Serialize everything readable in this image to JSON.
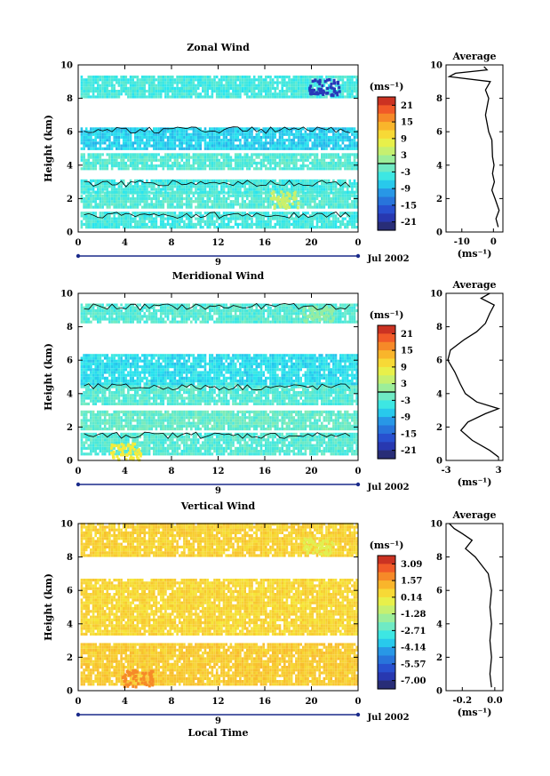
{
  "figure": {
    "x_axis_label": "Local Time",
    "date_label": "Jul 2002",
    "day_label": "9",
    "y_axis_label": "Height (km)",
    "average_title": "Average",
    "unit_label": "(ms⁻¹)",
    "colorbar_unit": "(ms⁻¹)"
  },
  "chart_data": [
    {
      "type": "heatmap",
      "title": "Zonal Wind",
      "xlabel": "",
      "ylabel": "Height (km)",
      "xlim": [
        0,
        24
      ],
      "ylim": [
        0,
        10
      ],
      "x_ticks": [
        "0",
        "4",
        "8",
        "12",
        "16",
        "20",
        "0"
      ],
      "y_ticks": [
        "0",
        "2",
        "4",
        "6",
        "8",
        "10"
      ],
      "colorbar": {
        "label": "(ms⁻¹)",
        "ticks": [
          "21",
          "15",
          "9",
          "3",
          "-3",
          "-9",
          "-15",
          "-21"
        ],
        "zero_line": true
      },
      "bands": [
        {
          "y0": 0.2,
          "y1": 1.1,
          "value": -4
        },
        {
          "y0": 1.4,
          "y1": 2.4,
          "value": -3
        },
        {
          "y0": 2.3,
          "y1": 3.0,
          "value": -4
        },
        {
          "y0": 3.7,
          "y1": 4.6,
          "value": -3
        },
        {
          "y0": 4.9,
          "y1": 6.2,
          "value": -7
        },
        {
          "y0": 8.0,
          "y1": 9.3,
          "value": -4
        }
      ],
      "features": [
        {
          "x": 21.0,
          "y": 8.7,
          "value": -19
        },
        {
          "x": 17.5,
          "y": 2.0,
          "value": 5
        }
      ],
      "profile": {
        "title": "Average",
        "xlabel": "(ms⁻¹)",
        "xlim": [
          -15,
          3
        ],
        "x_ticks": [
          "-10",
          "0"
        ],
        "ylim": [
          0,
          10
        ],
        "y_ticks": [
          "0",
          "2",
          "4",
          "6",
          "8",
          "10"
        ],
        "points": [
          [
            1.5,
            0.3
          ],
          [
            0.8,
            0.8
          ],
          [
            1.8,
            1.3
          ],
          [
            0.5,
            2.0
          ],
          [
            -0.5,
            2.5
          ],
          [
            0.3,
            3.0
          ],
          [
            -0.3,
            3.5
          ],
          [
            0.2,
            4.0
          ],
          [
            -0.3,
            4.5
          ],
          [
            -0.5,
            5.5
          ],
          [
            -1.5,
            6.0
          ],
          [
            -2.0,
            6.5
          ],
          [
            -2.5,
            7.0
          ],
          [
            -2.0,
            7.5
          ],
          [
            -1.5,
            8.0
          ],
          [
            -2.5,
            8.5
          ],
          [
            -1.0,
            9.0
          ],
          [
            -14.0,
            9.3
          ],
          [
            -12.0,
            9.5
          ],
          [
            -2.0,
            9.7
          ],
          [
            -3.0,
            9.9
          ]
        ]
      }
    },
    {
      "type": "heatmap",
      "title": "Meridional Wind",
      "xlabel": "",
      "ylabel": "Height (km)",
      "xlim": [
        0,
        24
      ],
      "ylim": [
        0,
        10
      ],
      "x_ticks": [
        "0",
        "4",
        "8",
        "12",
        "16",
        "20",
        "0"
      ],
      "y_ticks": [
        "0",
        "2",
        "4",
        "6",
        "8",
        "10"
      ],
      "colorbar": {
        "label": "(ms⁻¹)",
        "ticks": [
          "21",
          "15",
          "9",
          "3",
          "-3",
          "-9",
          "-15",
          "-21"
        ],
        "zero_line": true
      },
      "bands": [
        {
          "y0": 0.3,
          "y1": 1.6,
          "value": -3
        },
        {
          "y0": 1.8,
          "y1": 2.9,
          "value": -2
        },
        {
          "y0": 3.3,
          "y1": 4.5,
          "value": -3
        },
        {
          "y0": 4.5,
          "y1": 6.2,
          "value": -6
        },
        {
          "y0": 8.2,
          "y1": 9.3,
          "value": -3
        }
      ],
      "features": [
        {
          "x": 4.0,
          "y": 0.6,
          "value": 9
        },
        {
          "x": 20.5,
          "y": 8.8,
          "value": 1
        }
      ],
      "profile": {
        "title": "Average",
        "xlabel": "(ms⁻¹)",
        "xlim": [
          -3,
          3.5
        ],
        "x_ticks": [
          "-3",
          "3"
        ],
        "ylim": [
          0,
          10
        ],
        "y_ticks": [
          "0",
          "2",
          "4",
          "6",
          "8",
          "10"
        ],
        "points": [
          [
            3.0,
            0.2
          ],
          [
            2.0,
            0.6
          ],
          [
            0.0,
            1.2
          ],
          [
            -1.3,
            1.8
          ],
          [
            -0.5,
            2.3
          ],
          [
            1.5,
            2.8
          ],
          [
            3.0,
            3.1
          ],
          [
            0.5,
            3.5
          ],
          [
            -0.8,
            4.0
          ],
          [
            -1.4,
            4.6
          ],
          [
            -2.0,
            5.3
          ],
          [
            -2.8,
            6.0
          ],
          [
            -2.5,
            6.6
          ],
          [
            -1.0,
            7.2
          ],
          [
            0.5,
            7.7
          ],
          [
            1.5,
            8.2
          ],
          [
            2.0,
            8.8
          ],
          [
            2.5,
            9.3
          ],
          [
            1.0,
            9.7
          ],
          [
            2.0,
            10.0
          ]
        ]
      }
    },
    {
      "type": "heatmap",
      "title": "Vertical Wind",
      "xlabel": "Local Time",
      "ylabel": "Height (km)",
      "xlim": [
        0,
        24
      ],
      "ylim": [
        0,
        10
      ],
      "x_ticks": [
        "0",
        "4",
        "8",
        "12",
        "16",
        "20",
        "0"
      ],
      "y_ticks": [
        "0",
        "2",
        "4",
        "6",
        "8",
        "10"
      ],
      "colorbar": {
        "label": "(ms⁻¹)",
        "ticks": [
          "3.09",
          "1.57",
          "0.14",
          "-1.28",
          "-2.71",
          "-4.14",
          "-5.57",
          "-7.00"
        ],
        "zero_line": false
      },
      "bands": [
        {
          "y0": 0.3,
          "y1": 2.7,
          "value": 0.5
        },
        {
          "y0": 3.3,
          "y1": 6.6,
          "value": 0.3
        },
        {
          "y0": 8.0,
          "y1": 10.0,
          "value": 0.4
        }
      ],
      "features": [
        {
          "x": 20.5,
          "y": 8.7,
          "value": -0.5
        },
        {
          "x": 5.0,
          "y": 0.8,
          "value": 1.5
        }
      ],
      "profile": {
        "title": "Average",
        "xlabel": "(ms⁻¹)",
        "xlim": [
          -0.3,
          0.05
        ],
        "x_ticks": [
          "-0.2",
          "0.0"
        ],
        "ylim": [
          0,
          10
        ],
        "y_ticks": [
          "0",
          "2",
          "4",
          "6",
          "8",
          "10"
        ],
        "points": [
          [
            -0.02,
            0.2
          ],
          [
            -0.03,
            1.0
          ],
          [
            -0.02,
            2.0
          ],
          [
            -0.03,
            3.0
          ],
          [
            -0.02,
            4.0
          ],
          [
            -0.03,
            5.0
          ],
          [
            -0.02,
            6.0
          ],
          [
            -0.04,
            7.0
          ],
          [
            -0.08,
            7.5
          ],
          [
            -0.12,
            8.0
          ],
          [
            -0.18,
            8.5
          ],
          [
            -0.14,
            9.0
          ],
          [
            -0.2,
            9.4
          ],
          [
            -0.25,
            9.7
          ],
          [
            -0.28,
            10.0
          ]
        ]
      }
    }
  ]
}
